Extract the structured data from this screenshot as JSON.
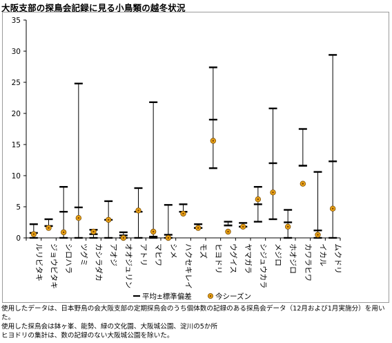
{
  "title": "大阪支部の探鳥会記録に見る小鳥類の越冬状況",
  "captions": {
    "line1": "使用したデータは、日本野鳥の会大阪支部の定期探鳥会のうち個体数の記録のある探鳥会データ（12月および1月実施分）を用いた。",
    "line2": "使用した探鳥会は鉢ヶ峯、能勢、緑の文化園、大阪城公園、淀川の5か所",
    "line3": "ヒヨドリの集計は、数の記録のない大阪城公園を除いた。"
  },
  "chart_data": {
    "type": "scatter",
    "title": "",
    "xlabel": "",
    "ylabel": "",
    "ylim": [
      0,
      35
    ],
    "yticks": [
      0,
      5,
      10,
      15,
      20,
      25,
      30,
      35
    ],
    "grid": false,
    "legend_position": "bottom",
    "categories": [
      "ルリビタキ",
      "ジョウビタキ",
      "シロハラ",
      "ツグミ",
      "カシラダカ",
      "アオジ",
      "オオジュリン",
      "アトリ",
      "マヒワ",
      "シメ",
      "ハクセキレイ",
      "モズ",
      "ヒヨドリ",
      "ウグイス",
      "ヤマガラ",
      "シジュウカラ",
      "メジロ",
      "ホオジロ",
      "カワラヒワ",
      "イカル",
      "ムクドリ"
    ],
    "series": [
      {
        "name": "平均±標準偏差",
        "kind": "error-bar",
        "color": "#000000",
        "mean": [
          0.8,
          1.9,
          4.2,
          4.9,
          0.6,
          2.9,
          0.4,
          4.2,
          0.2,
          0.5,
          4.2,
          1.6,
          19.0,
          2.0,
          1.8,
          5.4,
          12.0,
          2.5,
          11.6,
          1.2,
          12.3
        ],
        "lower": [
          0.0,
          1.9,
          0.0,
          0.0,
          0.0,
          0.0,
          0.0,
          0.0,
          0.0,
          0.0,
          4.2,
          1.6,
          11.2,
          2.0,
          1.8,
          2.6,
          3.0,
          0.0,
          11.6,
          0.0,
          0.0
        ],
        "upper": [
          2.2,
          3.0,
          8.2,
          24.8,
          1.3,
          5.9,
          0.9,
          8.0,
          21.8,
          5.3,
          5.4,
          2.2,
          27.4,
          2.6,
          2.4,
          8.2,
          20.8,
          4.5,
          17.5,
          10.6,
          29.4
        ]
      },
      {
        "name": "今シーズン",
        "kind": "marker",
        "color": "#e8a317",
        "values": [
          0.6,
          1.6,
          0.9,
          3.2,
          1.0,
          2.9,
          0.0,
          4.4,
          1.0,
          0.0,
          3.9,
          1.6,
          15.6,
          1.0,
          1.8,
          6.2,
          7.3,
          1.8,
          8.7,
          0.5,
          4.7
        ]
      }
    ]
  }
}
